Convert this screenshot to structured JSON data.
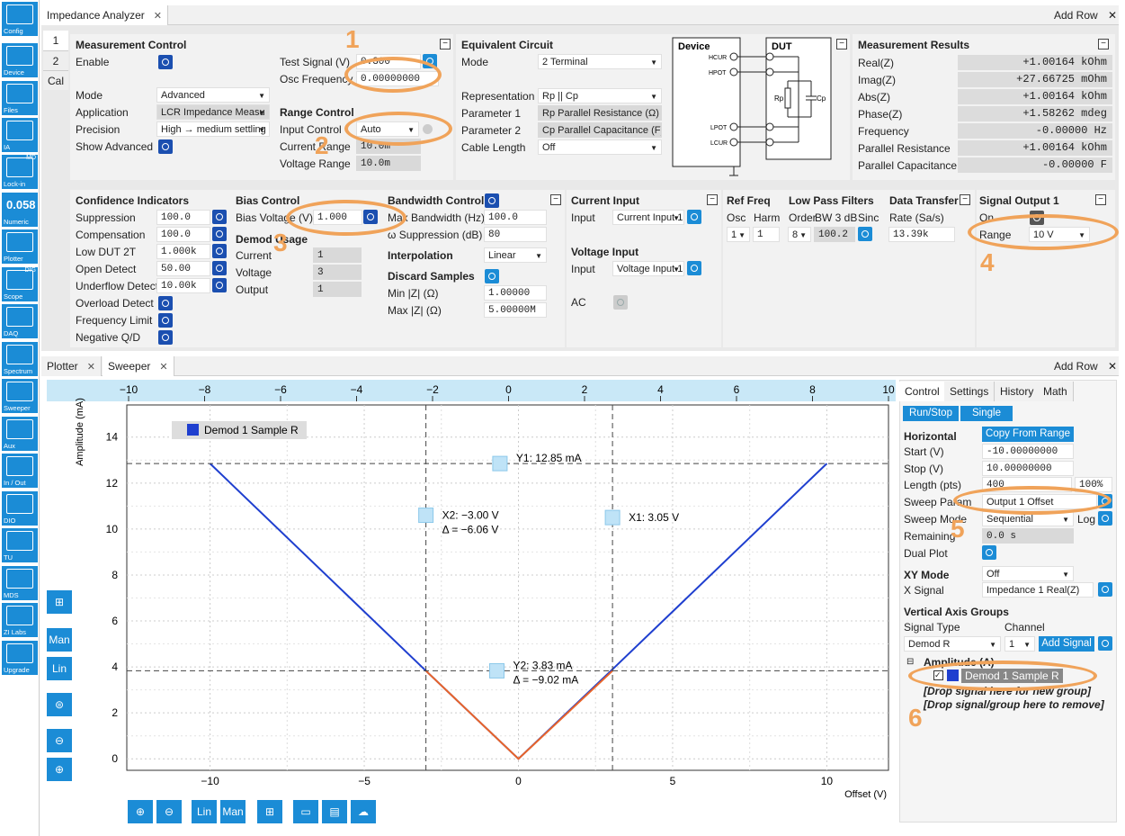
{
  "sidebar": [
    {
      "label": "Config",
      "icon": "gears-icon"
    },
    {
      "label": "Device",
      "icon": "device-icon"
    },
    {
      "label": "Files",
      "icon": "folder-icon"
    },
    {
      "label": "IA",
      "icon": "impedance-icon"
    },
    {
      "label": "Lock-in",
      "icon": "lockin-icon",
      "badge": "MD"
    },
    {
      "label": "Numeric",
      "icon": "numeric-icon",
      "glyph": "0.058"
    },
    {
      "label": "Plotter",
      "icon": "plotter-icon"
    },
    {
      "label": "Scope",
      "icon": "scope-icon",
      "badge": "DIG"
    },
    {
      "label": "DAQ",
      "icon": "daq-icon"
    },
    {
      "label": "Spectrum",
      "icon": "spectrum-icon"
    },
    {
      "label": "Sweeper",
      "icon": "sweeper-icon"
    },
    {
      "label": "Aux",
      "icon": "aux-icon"
    },
    {
      "label": "In / Out",
      "icon": "inout-icon"
    },
    {
      "label": "DIO",
      "icon": "dio-icon"
    },
    {
      "label": "TU",
      "icon": "tu-icon"
    },
    {
      "label": "MDS",
      "icon": "mds-icon"
    },
    {
      "label": "ZI Labs",
      "icon": "flask-icon"
    },
    {
      "label": "Upgrade",
      "icon": "upgrade-icon"
    }
  ],
  "top_panel": {
    "tab": "Impedance Analyzer",
    "add_row": "Add Row",
    "side_tabs": [
      "1",
      "2",
      "Cal"
    ],
    "measurement_control": {
      "title": "Measurement Control",
      "enable": "Enable",
      "mode_label": "Mode",
      "mode": "Advanced",
      "application_label": "Application",
      "application": "LCR Impedance Measu",
      "precision_label": "Precision",
      "precision": "High → medium settling",
      "show_advanced": "Show Advanced",
      "test_signal_label": "Test Signal (V)",
      "test_signal": "0.300",
      "osc_freq_label": "Osc Frequency",
      "osc_freq": "0.00000000"
    },
    "range_control": {
      "title": "Range Control",
      "input_control_label": "Input Control",
      "input_control": "Auto",
      "current_range_label": "Current Range",
      "current_range": "10.0m",
      "voltage_range_label": "Voltage Range",
      "voltage_range": "10.0m"
    },
    "equivalent_circuit": {
      "title": "Equivalent Circuit",
      "mode_label": "Mode",
      "mode": "2 Terminal",
      "representation_label": "Representation",
      "representation": "Rp || Cp",
      "param1_label": "Parameter 1",
      "param1": "Rp Parallel Resistance (Ω)",
      "param2_label": "Parameter 2",
      "param2": "Cp Parallel Capacitance (F)",
      "cable_label": "Cable Length",
      "cable": "Off"
    },
    "diagram": {
      "device": "Device",
      "dut": "DUT",
      "hcur": "HCUR",
      "hpot": "HPOT",
      "lpot": "LPOT",
      "lcur": "LCUR",
      "rp": "Rp",
      "cp": "Cp"
    },
    "results": {
      "title": "Measurement Results",
      "rows": [
        {
          "label": "Real(Z)",
          "value": "+1.00164",
          "unit": "kOhm"
        },
        {
          "label": "Imag(Z)",
          "value": "+27.66725",
          "unit": "mOhm"
        },
        {
          "label": "Abs(Z)",
          "value": "+1.00164",
          "unit": "kOhm"
        },
        {
          "label": "Phase(Z)",
          "value": "+1.58262",
          "unit": "mdeg"
        },
        {
          "label": "Frequency",
          "value": "-0.00000",
          "unit": "Hz"
        },
        {
          "label": "Parallel Resistance",
          "value": "+1.00164",
          "unit": "kOhm"
        },
        {
          "label": "Parallel Capacitance",
          "value": "-0.00000",
          "unit": "F"
        }
      ]
    },
    "confidence": {
      "title": "Confidence Indicators",
      "rows": [
        {
          "label": "Suppression",
          "value": "100.0"
        },
        {
          "label": "Compensation",
          "value": "100.0"
        },
        {
          "label": "Low DUT 2T",
          "value": "1.000k"
        },
        {
          "label": "Open Detect",
          "value": "50.00"
        },
        {
          "label": "Underflow Detect",
          "value": "10.00k"
        }
      ],
      "extra": [
        "Overload Detect",
        "Frequency Limit",
        "Negative Q/D"
      ]
    },
    "bias": {
      "title": "Bias Control",
      "label": "Bias Voltage (V)",
      "value": "1.000",
      "demod_title": "Demod Usage",
      "current_label": "Current",
      "current": "1",
      "voltage_label": "Voltage",
      "voltage": "3",
      "output_label": "Output",
      "output": "1"
    },
    "bandwidth": {
      "title": "Bandwidth Control",
      "max_bw_label": "Max Bandwidth (Hz)",
      "max_bw": "100.0",
      "supp_label": "ω Suppression (dB)",
      "supp": "80",
      "interp_label": "Interpolation",
      "interp": "Linear",
      "discard_label": "Discard Samples",
      "min_label": "Min |Z| (Ω)",
      "min": "1.00000",
      "max_label": "Max |Z| (Ω)",
      "max": "5.00000M"
    },
    "current_input": {
      "title": "Current Input",
      "input_label": "Input",
      "input": "Current Input 1",
      "voltage_title": "Voltage Input",
      "vinput_label": "Input",
      "vinput": "Voltage Input 1",
      "ac": "AC"
    },
    "ref_freq": {
      "title": "Ref Freq",
      "osc": "Osc",
      "harm": "Harm",
      "osc_val": "1",
      "harm_val": "1"
    },
    "lpf": {
      "title": "Low Pass Filters",
      "order": "Order",
      "bw": "BW 3 dB",
      "sinc": "Sinc",
      "order_val": "8",
      "bw_val": "100.2"
    },
    "data_transfer": {
      "title": "Data Transfer",
      "rate_label": "Rate (Sa/s)",
      "rate": "13.39k"
    },
    "signal_output": {
      "title": "Signal Output 1",
      "on": "On",
      "range_label": "Range",
      "range": "10 V"
    }
  },
  "bottom_panel": {
    "tabs": [
      "Plotter",
      "Sweeper"
    ],
    "add_row": "Add Row",
    "control_tabs": [
      "Control",
      "Settings",
      "History",
      "Math"
    ],
    "run_stop": "Run/Stop",
    "single": "Single",
    "horizontal": "Horizontal",
    "copy_from_range": "Copy From Range",
    "start_label": "Start (V)",
    "start": "-10.00000000",
    "stop_label": "Stop (V)",
    "stop": "10.00000000",
    "length_label": "Length (pts)",
    "length": "400",
    "length_pct": "100%",
    "sweep_param_label": "Sweep Param",
    "sweep_param": "Output 1 Offset",
    "sweep_mode_label": "Sweep Mode",
    "sweep_mode": "Sequential",
    "log": "Log",
    "remaining_label": "Remaining",
    "remaining": "0.0 s",
    "dual_plot": "Dual Plot",
    "xy_mode_label": "XY Mode",
    "xy_mode": "Off",
    "x_signal_label": "X Signal",
    "x_signal": "Impedance 1 Real(Z)",
    "vag_title": "Vertical Axis Groups",
    "signal_type_label": "Signal Type",
    "channel_label": "Channel",
    "signal_type": "Demod R",
    "channel": "1",
    "add_signal": "Add Signal",
    "group": "Amplitude (A)",
    "signal": "Demod 1 Sample R",
    "drop_new": "[Drop signal here for new group]",
    "drop_remove": "[Drop signal/group here to remove]",
    "toolbar_left": [
      "Man",
      "Lin"
    ],
    "toolbar_bottom": [
      "Lin",
      "Man"
    ]
  },
  "chart_data": {
    "type": "line",
    "ylabel": "Amplitude (mA)",
    "xlabel": "Offset (V)",
    "x_ticks": [
      -10,
      -5,
      0,
      5,
      10
    ],
    "y_ticks": [
      0,
      2,
      4,
      6,
      8,
      10,
      12,
      14
    ],
    "top_ticks": [
      -10,
      -8,
      -6,
      -4,
      -2,
      0,
      2,
      4,
      6,
      8,
      10
    ],
    "xlim": [
      -12.7,
      12
    ],
    "ylim": [
      -0.5,
      15.4
    ],
    "legend": "Demod 1 Sample R",
    "series": [
      {
        "name": "Demod 1 Sample R",
        "color": "#1f3fcf",
        "x": [
          -10,
          -3,
          0,
          3,
          10
        ],
        "y": [
          12.85,
          3.83,
          0,
          3.83,
          12.85
        ]
      },
      {
        "name": "",
        "color": "#e8642a",
        "x": [
          -3.0,
          0,
          3.05
        ],
        "y": [
          3.83,
          0,
          3.83
        ]
      }
    ],
    "cursors": {
      "x1": {
        "x": 3.05,
        "label": "X1: 3.05 V"
      },
      "x2": {
        "x": -3.0,
        "label": "X2: −3.00 V",
        "delta": "Δ = −6.06 V"
      },
      "y1": {
        "y": 12.85,
        "label": "Y1: 12.85 mA"
      },
      "y2": {
        "y": 3.83,
        "label": "Y2: 3.83 mA",
        "delta": "Δ = −9.02 mA"
      }
    }
  },
  "annotations": [
    "1",
    "2",
    "3",
    "4",
    "5",
    "6"
  ]
}
